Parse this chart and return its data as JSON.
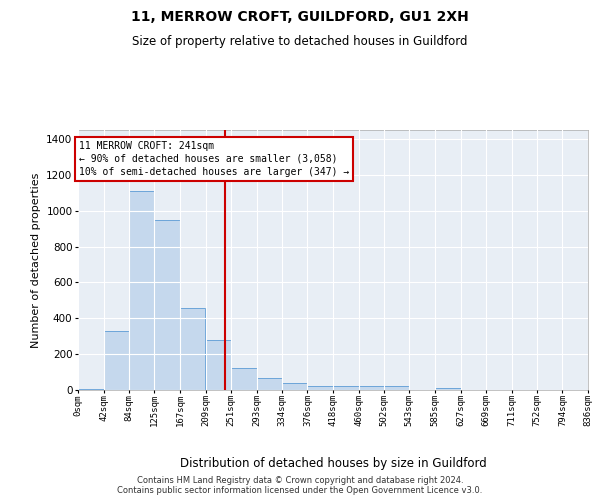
{
  "title": "11, MERROW CROFT, GUILDFORD, GU1 2XH",
  "subtitle": "Size of property relative to detached houses in Guildford",
  "xlabel": "Distribution of detached houses by size in Guildford",
  "ylabel": "Number of detached properties",
  "bar_color": "#c5d8ed",
  "bar_edge_color": "#5b9bd5",
  "bg_color": "#e8eef5",
  "grid_color": "#ffffff",
  "fig_color": "#ffffff",
  "bin_labels": [
    "0sqm",
    "42sqm",
    "84sqm",
    "125sqm",
    "167sqm",
    "209sqm",
    "251sqm",
    "293sqm",
    "334sqm",
    "376sqm",
    "418sqm",
    "460sqm",
    "502sqm",
    "543sqm",
    "585sqm",
    "627sqm",
    "669sqm",
    "711sqm",
    "752sqm",
    "794sqm",
    "836sqm"
  ],
  "bin_edges": [
    0,
    42,
    84,
    125,
    167,
    209,
    251,
    293,
    334,
    376,
    418,
    460,
    502,
    543,
    585,
    627,
    669,
    711,
    752,
    794,
    836
  ],
  "bar_heights": [
    5,
    330,
    1110,
    950,
    460,
    280,
    120,
    65,
    40,
    20,
    20,
    20,
    20,
    0,
    10,
    0,
    0,
    0,
    0,
    0
  ],
  "property_size": 241,
  "annotation_title": "11 MERROW CROFT: 241sqm",
  "annotation_line1": "← 90% of detached houses are smaller (3,058)",
  "annotation_line2": "10% of semi-detached houses are larger (347) →",
  "annotation_box_color": "#ffffff",
  "annotation_border_color": "#cc0000",
  "vline_color": "#cc0000",
  "ylim": [
    0,
    1450
  ],
  "yticks": [
    0,
    200,
    400,
    600,
    800,
    1000,
    1200,
    1400
  ],
  "footer1": "Contains HM Land Registry data © Crown copyright and database right 2024.",
  "footer2": "Contains public sector information licensed under the Open Government Licence v3.0."
}
